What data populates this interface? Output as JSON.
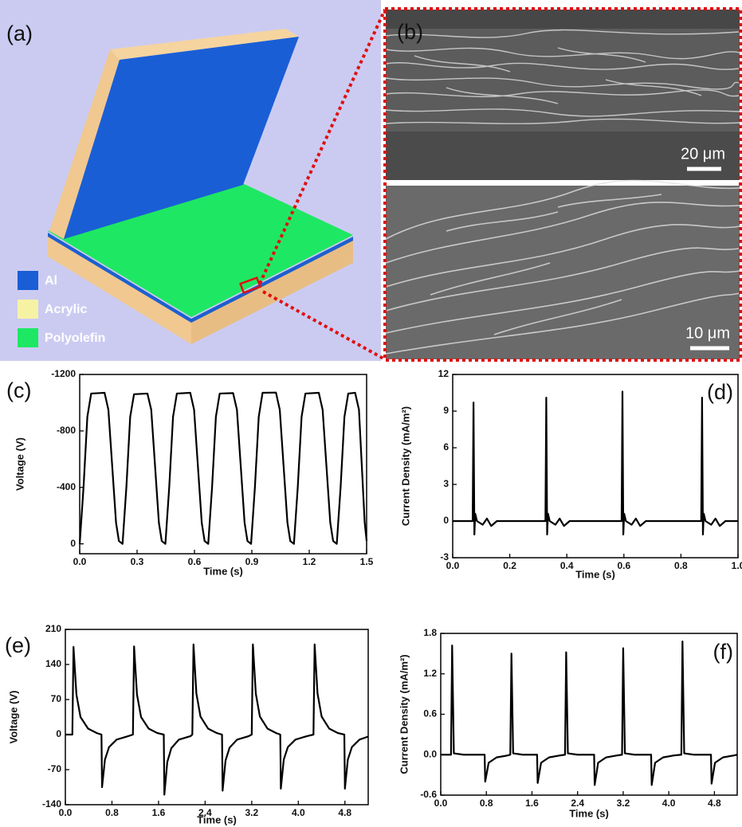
{
  "panel_a": {
    "label": "(a)",
    "legend": [
      "Al",
      "Acrylic",
      "Polyolefin"
    ]
  },
  "panel_b": {
    "label": "(b)",
    "scale_bars": [
      "20 μm",
      "10 μm"
    ]
  },
  "chart_data": [
    {
      "type": "line",
      "panel_label": "(c)",
      "x_label": "Time (s)",
      "y_label": "Voltage (V)",
      "grid": false,
      "color": "#000000",
      "xlim": [
        0,
        1.5
      ],
      "xticks": [
        {
          "value": 0,
          "label": "0.0"
        },
        0.3,
        0.6,
        0.9,
        1.2,
        1.5
      ],
      "ylim": [
        70,
        -1200
      ],
      "yticks": [
        -1200,
        -800,
        -400,
        0
      ],
      "x": [
        0,
        0.02,
        0.04,
        0.06,
        0.13,
        0.15,
        0.17,
        0.19,
        0.205,
        0.224,
        0.244,
        0.264,
        0.284,
        0.354,
        0.374,
        0.394,
        0.414,
        0.429,
        0.448,
        0.468,
        0.488,
        0.508,
        0.578,
        0.598,
        0.618,
        0.638,
        0.653,
        0.672,
        0.692,
        0.712,
        0.732,
        0.802,
        0.822,
        0.842,
        0.862,
        0.877,
        0.896,
        0.916,
        0.936,
        0.956,
        1.026,
        1.046,
        1.066,
        1.086,
        1.101,
        1.12,
        1.14,
        1.16,
        1.18,
        1.25,
        1.27,
        1.29,
        1.31,
        1.325,
        1.344,
        1.364,
        1.384,
        1.404,
        1.44,
        1.46,
        1.475,
        1.49,
        1.5
      ],
      "values": [
        0,
        -400,
        -900,
        -1065,
        -1070,
        -950,
        -550,
        -150,
        -20,
        0,
        -400,
        -900,
        -1060,
        -1065,
        -950,
        -550,
        -150,
        -20,
        0,
        -400,
        -900,
        -1065,
        -1070,
        -950,
        -550,
        -150,
        -20,
        0,
        -400,
        -900,
        -1065,
        -1068,
        -950,
        -550,
        -150,
        -20,
        0,
        -400,
        -900,
        -1070,
        -1072,
        -950,
        -550,
        -150,
        -20,
        0,
        -400,
        -900,
        -1065,
        -1070,
        -950,
        -550,
        -150,
        -20,
        0,
        -400,
        -900,
        -1065,
        -1070,
        -950,
        -550,
        -150,
        -20
      ]
    },
    {
      "type": "line",
      "panel_label": "(d)",
      "x_label": "Time (s)",
      "y_label": "Current Density (mA/m²)",
      "grid": false,
      "color": "#000000",
      "xlim": [
        0,
        1
      ],
      "xticks": [
        {
          "value": 0,
          "label": "0.0"
        },
        0.2,
        0.4,
        0.6,
        0.8,
        {
          "value": 1,
          "label": "1.0"
        }
      ],
      "ylim": [
        -3,
        12
      ],
      "yticks": [
        -3,
        0,
        3,
        6,
        9,
        12
      ],
      "x": [
        0,
        0.07,
        0.073,
        0.076,
        0.079,
        0.085,
        0.105,
        0.12,
        0.135,
        0.155,
        0.325,
        0.328,
        0.331,
        0.334,
        0.34,
        0.36,
        0.375,
        0.39,
        0.41,
        0.592,
        0.595,
        0.598,
        0.601,
        0.607,
        0.627,
        0.642,
        0.657,
        0.677,
        0.871,
        0.874,
        0.877,
        0.88,
        0.886,
        0.906,
        0.921,
        0.936,
        0.956,
        1
      ],
      "values": [
        0,
        0,
        9.7,
        -1.1,
        0.6,
        0,
        -0.3,
        0.2,
        -0.4,
        0,
        0,
        10.1,
        -1.1,
        0.6,
        0,
        -0.3,
        0.2,
        -0.4,
        0,
        0,
        10.6,
        -1.1,
        0.6,
        0,
        -0.3,
        0.2,
        -0.4,
        0,
        0,
        10.1,
        -1.1,
        0.6,
        0,
        -0.3,
        0.2,
        -0.4,
        0,
        0
      ]
    },
    {
      "type": "line",
      "panel_label": "(e)",
      "x_label": "Time (s)",
      "y_label": "Voltage (V)",
      "grid": false,
      "color": "#000000",
      "xlim": [
        0,
        5.2
      ],
      "xticks": [
        {
          "value": 0,
          "label": "0.0"
        },
        0.8,
        1.6,
        2.4,
        3.2,
        {
          "value": 4,
          "label": "4.0"
        },
        4.8
      ],
      "ylim": [
        -140,
        210
      ],
      "yticks": [
        -140,
        -70,
        0,
        70,
        140,
        210
      ],
      "x": [
        0,
        0.12,
        0.14,
        0.19,
        0.26,
        0.39,
        0.54,
        0.62,
        0.63,
        0.68,
        0.75,
        0.88,
        1.08,
        1.16,
        1.18,
        1.23,
        1.3,
        1.43,
        1.58,
        1.69,
        1.7,
        1.75,
        1.82,
        1.95,
        2.15,
        2.18,
        2.2,
        2.25,
        2.32,
        2.45,
        2.6,
        2.69,
        2.7,
        2.75,
        2.82,
        2.95,
        3.15,
        3.2,
        3.22,
        3.27,
        3.34,
        3.47,
        3.62,
        3.69,
        3.7,
        3.75,
        3.82,
        3.95,
        4.15,
        4.26,
        4.28,
        4.33,
        4.4,
        4.53,
        4.68,
        4.79,
        4.8,
        4.85,
        4.92,
        5.05,
        5.2
      ],
      "values": [
        0,
        0,
        175,
        80,
        35,
        12,
        3,
        0,
        -105,
        -50,
        -25,
        -10,
        -3,
        0,
        176,
        80,
        35,
        12,
        3,
        0,
        -120,
        -55,
        -27,
        -10,
        -3,
        0,
        180,
        82,
        36,
        12,
        3,
        0,
        -112,
        -52,
        -26,
        -10,
        -3,
        0,
        180,
        82,
        36,
        12,
        3,
        0,
        -108,
        -50,
        -25,
        -10,
        -3,
        0,
        180,
        82,
        36,
        12,
        3,
        0,
        -108,
        -50,
        -25,
        -10,
        -4
      ]
    },
    {
      "type": "line",
      "panel_label": "(f)",
      "x_label": "Time (s)",
      "y_label": "Current Density (mA/m²)",
      "grid": false,
      "color": "#000000",
      "xlim": [
        0,
        5.2
      ],
      "xticks": [
        {
          "value": 0,
          "label": "0.0"
        },
        0.8,
        1.6,
        2.4,
        3.2,
        {
          "value": 4,
          "label": "4.0"
        },
        4.8
      ],
      "ylim": [
        -0.6,
        1.8
      ],
      "yticks": [
        -0.6,
        {
          "value": 0,
          "label": "0.0"
        },
        0.6,
        1.2,
        1.8
      ],
      "x": [
        0,
        0.18,
        0.2,
        0.23,
        0.4,
        0.77,
        0.78,
        0.84,
        0.98,
        1.18,
        1.22,
        1.24,
        1.27,
        1.44,
        1.69,
        1.7,
        1.76,
        1.9,
        2.1,
        2.18,
        2.2,
        2.23,
        2.4,
        2.69,
        2.7,
        2.76,
        2.9,
        3.1,
        3.18,
        3.2,
        3.23,
        3.4,
        3.69,
        3.7,
        3.76,
        3.9,
        4.1,
        4.22,
        4.24,
        4.27,
        4.44,
        4.74,
        4.75,
        4.81,
        4.95,
        5.15,
        5.2
      ],
      "values": [
        0,
        0,
        1.62,
        0.02,
        0,
        0,
        -0.4,
        -0.12,
        -0.04,
        -0.01,
        0,
        1.5,
        0.02,
        0,
        0,
        -0.42,
        -0.12,
        -0.04,
        -0.01,
        0,
        1.52,
        0.02,
        0,
        0,
        -0.45,
        -0.12,
        -0.04,
        -0.01,
        0,
        1.58,
        0.02,
        0,
        0,
        -0.45,
        -0.12,
        -0.04,
        -0.01,
        0,
        1.68,
        0.02,
        0,
        0,
        -0.43,
        -0.12,
        -0.04,
        -0.01,
        0
      ]
    }
  ]
}
